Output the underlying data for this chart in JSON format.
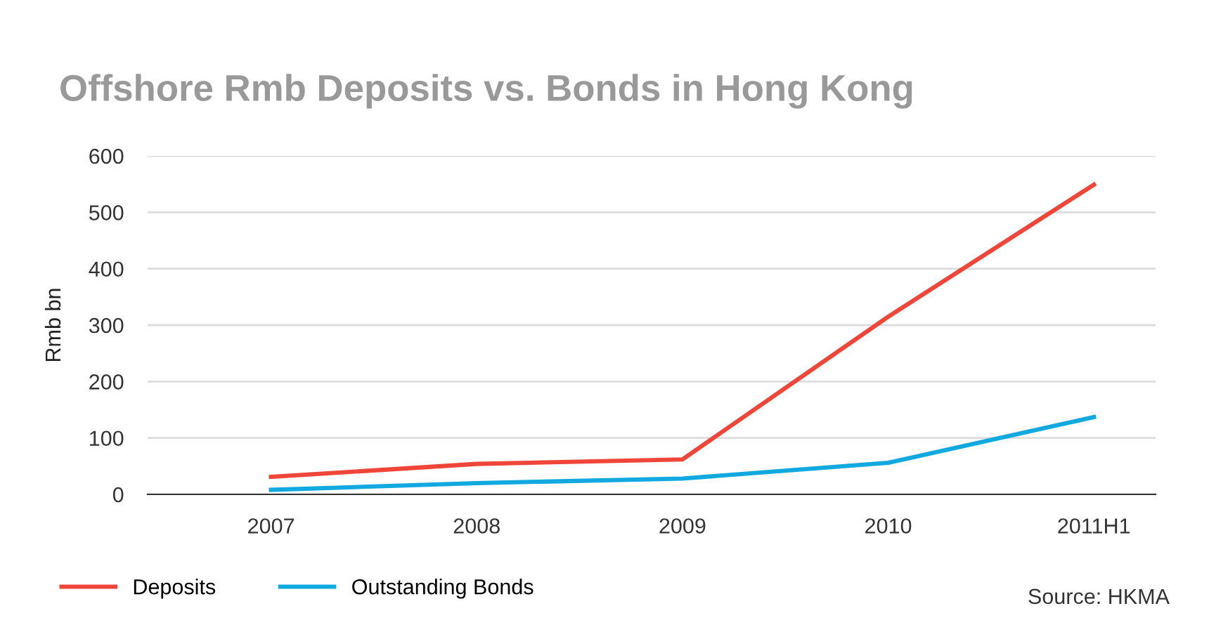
{
  "chart_data": {
    "type": "line",
    "title": "Offshore Rmb Deposits vs. Bonds in Hong Kong",
    "ylabel": "Rmb bn",
    "categories": [
      "2007",
      "2008",
      "2009",
      "2010",
      "2011H1"
    ],
    "series": [
      {
        "name": "Deposits",
        "color": "#f0463a",
        "values": [
          31,
          54,
          62,
          315,
          549
        ]
      },
      {
        "name": "Outstanding Bonds",
        "color": "#12a9e0",
        "values": [
          8,
          20,
          28,
          56,
          137
        ]
      }
    ],
    "ylim": [
      0,
      600
    ],
    "yticks": [
      0,
      100,
      200,
      300,
      400,
      500,
      600
    ],
    "grid": "y",
    "legend": "bottom left",
    "marker": "none",
    "line_style": "solid",
    "annotations": [
      "Source: HKMA"
    ]
  }
}
